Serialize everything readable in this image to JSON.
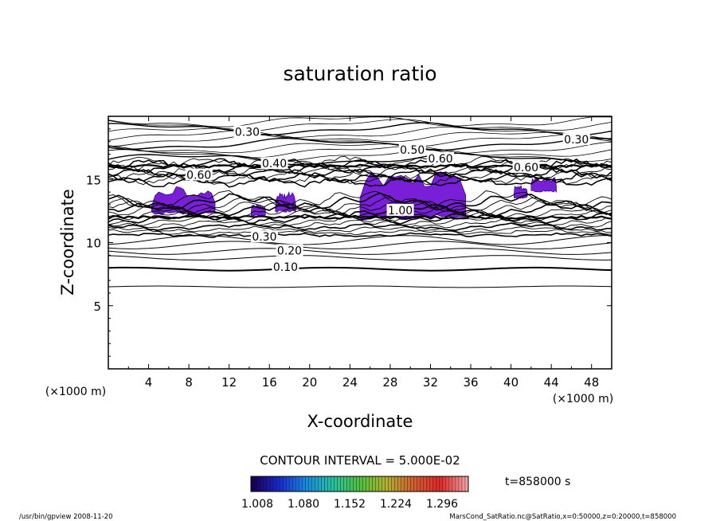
{
  "chart_data": {
    "type": "contour",
    "title": "saturation ratio",
    "xlabel": "X-coordinate",
    "ylabel": "Z-coordinate",
    "x_unit": "(×1000 m)",
    "y_unit": "(×1000 m)",
    "xlim": [
      0,
      50
    ],
    "ylim": [
      0,
      20
    ],
    "x_ticks": [
      4,
      8,
      12,
      16,
      20,
      24,
      28,
      32,
      36,
      40,
      44,
      48
    ],
    "y_ticks": [
      5,
      10,
      15
    ],
    "contour_labels": [
      {
        "value": "0.30",
        "x": 13.8,
        "z": 18.7
      },
      {
        "value": "0.30",
        "x": 46.5,
        "z": 18.1
      },
      {
        "value": "0.40",
        "x": 16.5,
        "z": 16.2
      },
      {
        "value": "0.50",
        "x": 30.2,
        "z": 17.3
      },
      {
        "value": "0.60",
        "x": 33.0,
        "z": 16.6
      },
      {
        "value": "0.60",
        "x": 9.0,
        "z": 15.3
      },
      {
        "value": "0.60",
        "x": 41.5,
        "z": 15.9
      },
      {
        "value": "0.30",
        "x": 15.5,
        "z": 10.4
      },
      {
        "value": "0.20",
        "x": 18.0,
        "z": 9.3
      },
      {
        "value": "0.10",
        "x": 17.6,
        "z": 8.0
      },
      {
        "value": "1.00",
        "x": 29.0,
        "z": 12.5
      }
    ],
    "contour_levels": [
      {
        "z": 6.5,
        "value": 0.05
      },
      {
        "z": 7.9,
        "value": 0.1
      },
      {
        "z": 8.8,
        "value": 0.15
      },
      {
        "z": 9.3,
        "value": 0.2
      },
      {
        "z": 9.8,
        "value": 0.25
      },
      {
        "z": 10.2,
        "value": 0.3
      }
    ],
    "supersaturated_regions": [
      {
        "x_range": [
          4.3,
          10.6
        ],
        "z_range": [
          12.2,
          14.5
        ]
      },
      {
        "x_range": [
          14.2,
          15.6
        ],
        "z_range": [
          12.1,
          13.0
        ]
      },
      {
        "x_range": [
          16.6,
          18.6
        ],
        "z_range": [
          12.4,
          14.0
        ]
      },
      {
        "x_range": [
          25.0,
          35.5
        ],
        "z_range": [
          11.8,
          15.8
        ]
      },
      {
        "x_range": [
          40.3,
          41.6
        ],
        "z_range": [
          13.5,
          14.5
        ]
      },
      {
        "x_range": [
          42.0,
          44.5
        ],
        "z_range": [
          14.0,
          15.2
        ]
      }
    ],
    "contour_interval": "CONTOUR INTERVAL = 5.000E-02",
    "colorbar": {
      "min": 1.008,
      "max": 1.296,
      "ticks": [
        "1.008",
        "1.080",
        "1.152",
        "1.224",
        "1.296"
      ],
      "colors": [
        "#180050",
        "#1a2ad0",
        "#1a8ae0",
        "#28c0a0",
        "#50c040",
        "#b0b030",
        "#d06030",
        "#e02a2a",
        "#f0a0a0"
      ]
    },
    "time_label": "t=858000 s",
    "footer_left": "/usr/bin/gpview   2008-11-20",
    "footer_right": "MarsCond_SatRatio.nc@SatRatio,x=0:50000,z=0:20000,t=858000",
    "grid": false,
    "legend": "none"
  }
}
